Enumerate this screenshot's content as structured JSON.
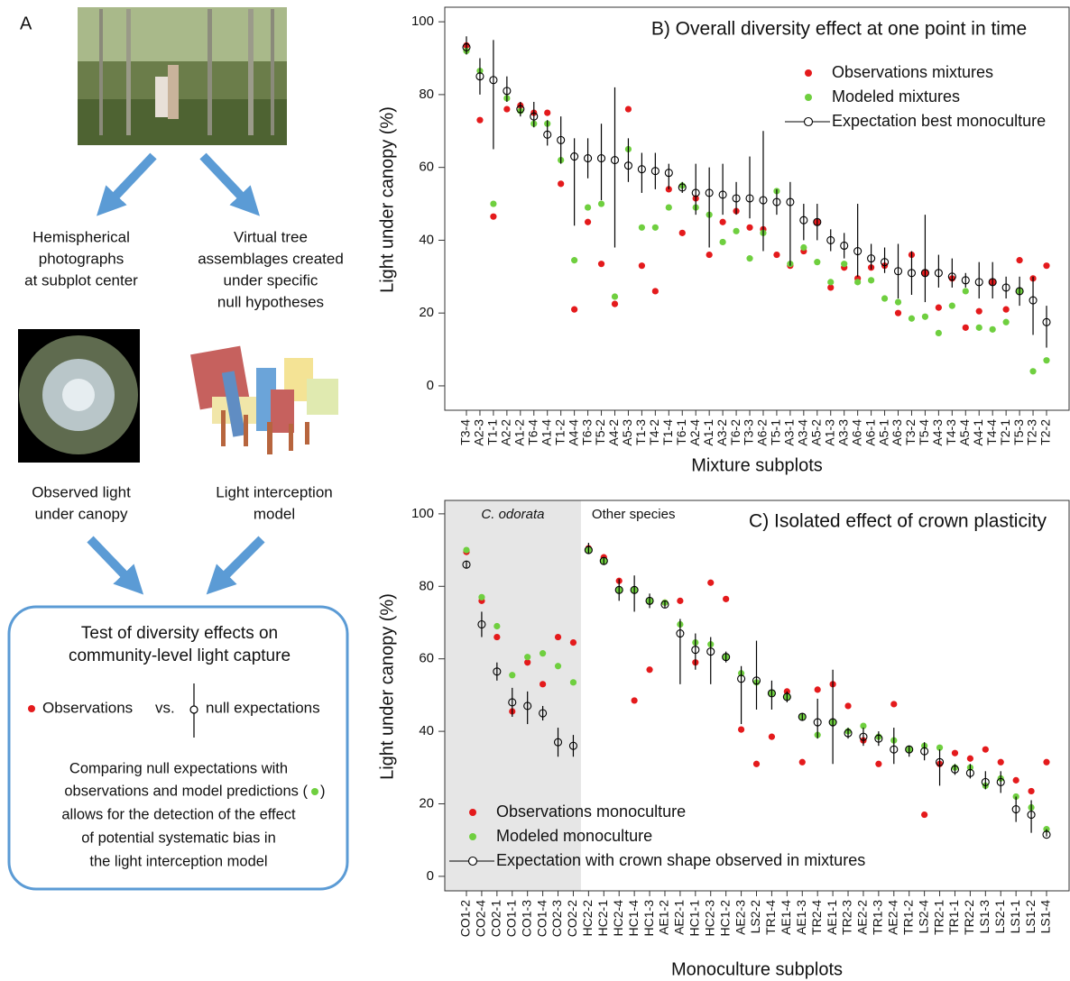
{
  "panel_a": {
    "label": "A",
    "photo_caption": [
      "Hemispherical",
      "photographs",
      "at subplot center"
    ],
    "model_caption": [
      "Virtual tree",
      "assemblages created",
      "under specific",
      "null hypotheses"
    ],
    "observed_caption": [
      "Observed light",
      "under canopy"
    ],
    "interception_caption": [
      "Light interception",
      "model"
    ],
    "box": {
      "title": [
        "Test of diversity effects on",
        "community-level light capture"
      ],
      "observations": "Observations",
      "vs": "vs.",
      "null": "null expectations",
      "text": [
        "Comparing null expectations with",
        "observations and model predictions (",
        ")",
        "allows for the detection of the effect",
        "of potential systematic bias in",
        "the light interception model"
      ]
    }
  },
  "chart_data": [
    {
      "type": "dot",
      "title": "B) Overall diversity effect at one point in time",
      "x_label": "Mixture subplots",
      "y_label": "Light under canopy (%)",
      "categories": [
        "T3-4",
        "A2-3",
        "T1-1",
        "A2-2",
        "A1-2",
        "T6-4",
        "A1-4",
        "T1-2",
        "A4-4",
        "T6-3",
        "T5-2",
        "A4-2",
        "A5-3",
        "T1-3",
        "T4-2",
        "T1-4",
        "T6-1",
        "A2-4",
        "A1-1",
        "A3-2",
        "T6-2",
        "T3-3",
        "A6-2",
        "T5-1",
        "A3-1",
        "A3-4",
        "A5-2",
        "A1-3",
        "A3-3",
        "A6-4",
        "A6-1",
        "A5-1",
        "A6-3",
        "T3-2",
        "T5-4",
        "A4-3",
        "T4-3",
        "A5-4",
        "A4-1",
        "T4-4",
        "T2-1",
        "T5-3",
        "T2-3",
        "T2-2"
      ],
      "series": [
        {
          "name": "Observations mixtures",
          "color": "#e41a1c",
          "values": [
            93.5,
            73,
            46.5,
            76,
            77,
            75,
            75,
            55.5,
            21,
            45,
            33.5,
            22.5,
            76,
            33,
            26,
            54,
            42,
            51.5,
            36,
            45,
            48,
            43.5,
            43,
            36,
            33,
            37,
            45,
            27,
            32.5,
            29.5,
            32.5,
            33,
            20,
            36,
            31,
            21.5,
            29.5,
            16,
            20.5,
            28.5,
            21,
            34.5,
            29.5,
            33
          ]
        },
        {
          "name": "Modeled mixtures",
          "color": "#6fcf3f",
          "values": [
            92,
            86.5,
            50,
            79,
            75.5,
            72,
            72,
            62,
            34.5,
            49,
            50,
            24.5,
            65,
            43.5,
            43.5,
            49,
            55,
            49,
            47,
            39.5,
            42.5,
            35,
            42,
            53.5,
            33.5,
            38,
            34,
            28.5,
            33.5,
            28.5,
            29,
            24,
            23,
            18.5,
            19,
            14.5,
            22,
            26,
            16,
            15.5,
            17.5,
            26,
            4,
            7
          ]
        },
        {
          "name": "Expectation best monoculture",
          "color": "#000000",
          "values": [
            93,
            85,
            84,
            81,
            76,
            74,
            69,
            67.5,
            63,
            62.5,
            62.5,
            62,
            60.5,
            59.5,
            59,
            58.5,
            54.5,
            53,
            53,
            52.5,
            51.5,
            51.5,
            51,
            50.5,
            50.5,
            45.5,
            45,
            40,
            38.5,
            37,
            35,
            34,
            31.5,
            31,
            31,
            31,
            30,
            29,
            28.5,
            28.5,
            27,
            26,
            23.5,
            17.5
          ],
          "lower": [
            91,
            80,
            65,
            78,
            74,
            71,
            66,
            61,
            44,
            57,
            51,
            38,
            56,
            53,
            54,
            54,
            53,
            47,
            38,
            47,
            47,
            46,
            37,
            47,
            33,
            40,
            40,
            37,
            35,
            30,
            32,
            31,
            24,
            25,
            23,
            27,
            27,
            27,
            24,
            24,
            24,
            22,
            14,
            10.5
          ],
          "upper": [
            96,
            90,
            95,
            85,
            78,
            78,
            73,
            74,
            68,
            68,
            72,
            82,
            68,
            64,
            64,
            61,
            56,
            61,
            60,
            61,
            56,
            63,
            70,
            54,
            56,
            50,
            50,
            43,
            42,
            50,
            39,
            38,
            39,
            37,
            47,
            36,
            35,
            31,
            34,
            34,
            30,
            30,
            30,
            22
          ]
        }
      ],
      "ylim": [
        -6.7,
        104
      ],
      "yticks": [
        0,
        20,
        40,
        60,
        80,
        100
      ],
      "legend": "upper right"
    },
    {
      "type": "dot",
      "title": "C) Isolated effect of crown plasticity",
      "x_label": "Monoculture subplots",
      "y_label": "Light under canopy (%)",
      "annotations": [
        {
          "text": "C. odorata",
          "font_style": "italic",
          "shade_from": "CO1-2",
          "shade_to": "CO2-2"
        },
        {
          "text": "Other species"
        }
      ],
      "categories": [
        "CO1-2",
        "CO2-4",
        "CO2-1",
        "CO1-1",
        "CO1-3",
        "CO1-4",
        "CO2-3",
        "CO2-2",
        "HC2-2",
        "HC2-1",
        "HC2-4",
        "HC1-4",
        "HC1-3",
        "AE1-2",
        "AE2-1",
        "HC1-1",
        "HC2-3",
        "HC1-2",
        "AE2-3",
        "LS2-2",
        "TR1-4",
        "AE1-4",
        "AE1-3",
        "TR2-4",
        "AE1-1",
        "TR2-3",
        "AE2-2",
        "TR1-3",
        "AE2-4",
        "TR1-2",
        "LS2-4",
        "TR2-1",
        "TR1-1",
        "TR2-2",
        "LS1-3",
        "LS2-1",
        "LS1-1",
        "LS1-2",
        "LS1-4"
      ],
      "series": [
        {
          "name": "Observations monoculture",
          "color": "#e41a1c",
          "values": [
            89.5,
            76,
            66,
            45.5,
            59,
            53,
            66,
            64.5,
            90.5,
            88,
            81.5,
            48.5,
            57,
            75.5,
            76,
            59,
            81,
            76.5,
            40.5,
            31,
            38.5,
            51,
            31.5,
            51.5,
            53,
            47,
            37.5,
            31,
            47.5,
            35,
            17,
            31,
            34,
            32.5,
            35,
            31.5,
            26.5,
            23.5,
            31.5
          ]
        },
        {
          "name": "Modeled monoculture",
          "color": "#6fcf3f",
          "values": [
            90,
            77,
            69,
            55.5,
            60.5,
            61.5,
            58,
            53.5,
            90,
            87,
            79,
            79,
            76,
            75.5,
            69.5,
            64.5,
            64,
            60.5,
            56,
            53.5,
            50.5,
            49.5,
            44,
            39,
            42.5,
            40,
            41.5,
            38.5,
            37.5,
            35,
            36,
            35.5,
            30,
            30,
            25,
            27,
            22,
            19,
            13
          ]
        },
        {
          "name": "Expectation with crown shape observed in mixtures",
          "color": "#000000",
          "values": [
            86,
            69.5,
            56.5,
            48,
            47,
            45,
            37,
            36,
            90,
            87,
            79,
            79,
            76,
            75,
            67,
            62.5,
            62,
            60.5,
            54.5,
            54,
            50.5,
            49.5,
            44,
            42.5,
            42.5,
            39.5,
            38.5,
            38,
            35,
            35,
            34.5,
            31.5,
            29.5,
            28.5,
            26,
            26,
            18.5,
            17,
            11.5
          ],
          "lower": [
            85,
            66,
            54,
            44,
            42,
            43,
            33,
            33,
            89,
            86,
            76,
            73,
            74,
            74,
            53,
            57,
            53,
            59,
            42,
            46,
            46,
            48,
            43,
            38,
            31,
            38,
            36,
            36,
            31,
            33,
            32,
            25,
            28,
            27,
            24,
            23,
            15,
            12,
            11
          ],
          "upper": [
            87,
            73,
            59,
            52,
            51,
            47,
            41,
            39,
            92,
            88,
            82,
            83,
            78,
            76,
            71,
            67,
            66,
            62,
            58,
            65,
            54,
            51,
            45,
            49,
            57,
            41,
            41,
            40,
            41,
            36,
            37,
            35,
            31,
            31,
            29,
            29,
            22,
            21,
            13
          ]
        }
      ],
      "ylim": [
        -4,
        103.7
      ],
      "yticks": [
        0,
        20,
        40,
        60,
        80,
        100
      ],
      "legend": "lower left"
    }
  ]
}
